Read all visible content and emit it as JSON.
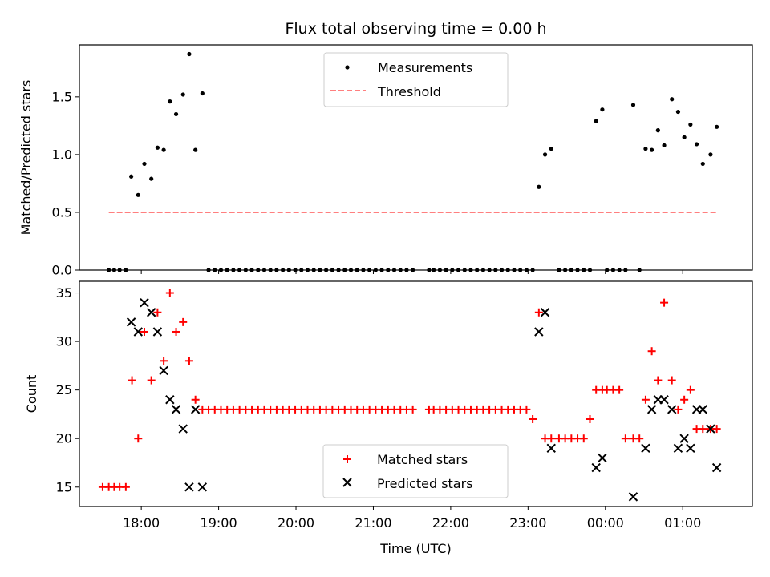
{
  "figure": {
    "title": "Flux total observing time = 0.00 h",
    "xlabel": "Time (UTC)",
    "x_tick_labels": [
      "18:00",
      "19:00",
      "20:00",
      "21:00",
      "22:00",
      "23:00",
      "00:00",
      "01:00"
    ]
  },
  "chart_data": [
    {
      "type": "scatter",
      "title": "Flux total observing time = 0.00 h",
      "ylabel": "Matched/Predicted stars",
      "xlabel": "Time (UTC)",
      "x_unit": "hours since 00:00 UTC of first day",
      "xlim": [
        17.2,
        25.9
      ],
      "ylim": [
        0.0,
        1.95
      ],
      "y_ticks": [
        0.0,
        0.5,
        1.0,
        1.5
      ],
      "y_tick_labels": [
        "0.0",
        "0.5",
        "1.0",
        "1.5"
      ],
      "legend_placement": "upper center",
      "series": [
        {
          "name": "Measurements",
          "kind": "points",
          "color": "#000000",
          "x": [
            17.58,
            17.65,
            17.72,
            17.8,
            17.87,
            17.96,
            18.04,
            18.13,
            18.21,
            18.29,
            18.37,
            18.45,
            18.54,
            18.62,
            18.7,
            18.79,
            18.87,
            18.95,
            19.03,
            19.11,
            19.19,
            19.27,
            19.35,
            19.43,
            19.51,
            19.59,
            19.67,
            19.75,
            19.83,
            19.91,
            19.99,
            20.07,
            20.15,
            20.23,
            20.31,
            20.39,
            20.47,
            20.55,
            20.63,
            20.71,
            20.79,
            20.87,
            20.95,
            21.03,
            21.11,
            21.19,
            21.27,
            21.35,
            21.43,
            21.51,
            21.72,
            21.78,
            21.86,
            21.94,
            22.02,
            22.1,
            22.18,
            22.26,
            22.34,
            22.42,
            22.5,
            22.58,
            22.66,
            22.74,
            22.82,
            22.9,
            22.98,
            23.06,
            23.14,
            23.22,
            23.3,
            23.4,
            23.48,
            23.56,
            23.64,
            23.72,
            23.8,
            23.88,
            23.96,
            24.02,
            24.1,
            24.18,
            24.26,
            24.36,
            24.44,
            24.52,
            24.6,
            24.68,
            24.76,
            24.86,
            24.94,
            25.02,
            25.1,
            25.18,
            25.26,
            25.36,
            25.44
          ],
          "y": [
            0.0,
            0.0,
            0.0,
            0.0,
            0.81,
            0.65,
            0.92,
            0.79,
            1.06,
            1.04,
            1.46,
            1.35,
            1.52,
            1.87,
            1.04,
            1.53,
            0.0,
            0.0,
            0.0,
            0.0,
            0.0,
            0.0,
            0.0,
            0.0,
            0.0,
            0.0,
            0.0,
            0.0,
            0.0,
            0.0,
            0.0,
            0.0,
            0.0,
            0.0,
            0.0,
            0.0,
            0.0,
            0.0,
            0.0,
            0.0,
            0.0,
            0.0,
            0.0,
            0.0,
            0.0,
            0.0,
            0.0,
            0.0,
            0.0,
            0.0,
            0.0,
            0.0,
            0.0,
            0.0,
            0.0,
            0.0,
            0.0,
            0.0,
            0.0,
            0.0,
            0.0,
            0.0,
            0.0,
            0.0,
            0.0,
            0.0,
            0.0,
            0.0,
            0.72,
            1.0,
            1.05,
            0.0,
            0.0,
            0.0,
            0.0,
            0.0,
            0.0,
            1.29,
            1.39,
            0.0,
            0.0,
            0.0,
            0.0,
            1.43,
            0.0,
            1.05,
            1.04,
            1.21,
            1.08,
            1.48,
            1.37,
            1.15,
            1.26,
            1.09,
            0.92,
            1.0,
            1.24
          ]
        },
        {
          "name": "Threshold",
          "kind": "dashed-line",
          "color": "#ff7f7f",
          "x": [
            17.58,
            25.44
          ],
          "y": [
            0.5,
            0.5
          ]
        }
      ]
    },
    {
      "type": "scatter",
      "ylabel": "Count",
      "xlabel": "Time (UTC)",
      "x_unit": "hours since 00:00 UTC of first day",
      "xlim": [
        17.2,
        25.9
      ],
      "ylim": [
        13.0,
        36.2
      ],
      "y_ticks": [
        15,
        20,
        25,
        30,
        35
      ],
      "y_tick_labels": [
        "15",
        "20",
        "25",
        "30",
        "35"
      ],
      "legend_placement": "lower center",
      "series": [
        {
          "name": "Matched stars",
          "marker": "plus",
          "color": "#ff0000",
          "x": [
            17.5,
            17.58,
            17.65,
            17.72,
            17.8,
            17.88,
            17.96,
            18.04,
            18.13,
            18.21,
            18.29,
            18.37,
            18.45,
            18.54,
            18.62,
            18.7,
            18.79,
            18.87,
            18.95,
            19.03,
            19.11,
            19.19,
            19.27,
            19.35,
            19.43,
            19.51,
            19.59,
            19.67,
            19.75,
            19.83,
            19.91,
            19.99,
            20.07,
            20.15,
            20.23,
            20.31,
            20.39,
            20.47,
            20.55,
            20.63,
            20.71,
            20.79,
            20.87,
            20.95,
            21.03,
            21.11,
            21.19,
            21.27,
            21.35,
            21.43,
            21.51,
            21.72,
            21.78,
            21.86,
            21.94,
            22.02,
            22.1,
            22.18,
            22.26,
            22.34,
            22.42,
            22.5,
            22.58,
            22.66,
            22.74,
            22.82,
            22.9,
            22.98,
            23.06,
            23.14,
            23.22,
            23.3,
            23.4,
            23.48,
            23.56,
            23.64,
            23.72,
            23.8,
            23.88,
            23.96,
            24.02,
            24.1,
            24.18,
            24.26,
            24.36,
            24.44,
            24.52,
            24.6,
            24.68,
            24.76,
            24.86,
            24.94,
            25.02,
            25.1,
            25.18,
            25.26,
            25.36,
            25.44
          ],
          "y": [
            15,
            15,
            15,
            15,
            15,
            26,
            20,
            31,
            26,
            33,
            28,
            35,
            31,
            32,
            28,
            24,
            23,
            23,
            23,
            23,
            23,
            23,
            23,
            23,
            23,
            23,
            23,
            23,
            23,
            23,
            23,
            23,
            23,
            23,
            23,
            23,
            23,
            23,
            23,
            23,
            23,
            23,
            23,
            23,
            23,
            23,
            23,
            23,
            23,
            23,
            23,
            23,
            23,
            23,
            23,
            23,
            23,
            23,
            23,
            23,
            23,
            23,
            23,
            23,
            23,
            23,
            23,
            23,
            22,
            33,
            20,
            20,
            20,
            20,
            20,
            20,
            20,
            22,
            25,
            25,
            25,
            25,
            25,
            20,
            20,
            20,
            24,
            29,
            26,
            34,
            26,
            23,
            24,
            25,
            21,
            21,
            21,
            21
          ]
        },
        {
          "name": "Predicted stars",
          "marker": "x",
          "color": "#000000",
          "x": [
            17.87,
            17.96,
            18.04,
            18.13,
            18.21,
            18.29,
            18.37,
            18.45,
            18.54,
            18.62,
            18.7,
            18.79,
            23.14,
            23.22,
            23.3,
            23.88,
            23.96,
            24.36,
            24.52,
            24.6,
            24.68,
            24.76,
            24.86,
            24.94,
            25.02,
            25.1,
            25.18,
            25.26,
            25.36,
            25.44
          ],
          "y": [
            32,
            31,
            34,
            33,
            31,
            27,
            24,
            23,
            21,
            15,
            23,
            15,
            31,
            33,
            19,
            17,
            18,
            14,
            19,
            23,
            24,
            24,
            23,
            19,
            20,
            19,
            23,
            23,
            21,
            17
          ]
        }
      ]
    }
  ]
}
